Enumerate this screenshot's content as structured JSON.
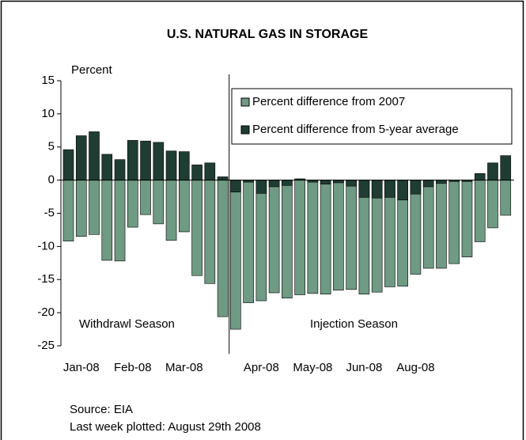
{
  "chart_data": {
    "type": "bar",
    "title": "U.S. NATURAL GAS IN STORAGE",
    "y_label": "Percent",
    "categories": [
      null,
      "Jan-08",
      null,
      null,
      null,
      "Feb-08",
      null,
      null,
      null,
      "Mar-08",
      null,
      null,
      null,
      null,
      null,
      "Apr-08",
      null,
      null,
      null,
      "May-08",
      null,
      null,
      null,
      "Jun-08",
      null,
      null,
      null,
      "Aug-08",
      null,
      null,
      null,
      null,
      null,
      null,
      null
    ],
    "series": [
      {
        "name": "Percent difference from 2007",
        "color": "#6f9a83",
        "values": [
          -9.2,
          -8.5,
          -8.2,
          -12.1,
          -12.2,
          -7.1,
          -5.2,
          -6.6,
          -9.1,
          -7.8,
          -14.4,
          -15.6,
          -20.6,
          -22.5,
          -18.5,
          -18.2,
          -17.0,
          -17.8,
          -17.3,
          -17.1,
          -17.2,
          -16.6,
          -16.5,
          -17.2,
          -16.9,
          -16.1,
          -16.0,
          -14.2,
          -13.3,
          -13.3,
          -12.6,
          -11.6,
          -9.3,
          -7.2,
          -5.3
        ]
      },
      {
        "name": "Percent difference from 5-year average",
        "color": "#1f3d33",
        "values": [
          4.6,
          6.7,
          7.3,
          3.9,
          3.1,
          6.0,
          5.9,
          5.7,
          4.4,
          4.3,
          2.3,
          2.6,
          0.5,
          -1.8,
          -0.3,
          -2.0,
          -1.0,
          -0.8,
          0.2,
          -0.3,
          -0.6,
          -0.4,
          -0.9,
          -2.6,
          -2.7,
          -2.6,
          -3.0,
          -2.1,
          -1.0,
          -0.5,
          -0.2,
          -0.2,
          1.0,
          2.6,
          3.7
        ]
      }
    ],
    "ylim": [
      -25,
      15
    ],
    "yticks": [
      -25,
      -20,
      -15,
      -10,
      -5,
      0,
      5,
      10,
      15
    ],
    "annotations": [
      "Withdrawl Season",
      "Injection Season"
    ],
    "source": "Source: EIA",
    "note": "Last week plotted: August 29th 2008"
  }
}
